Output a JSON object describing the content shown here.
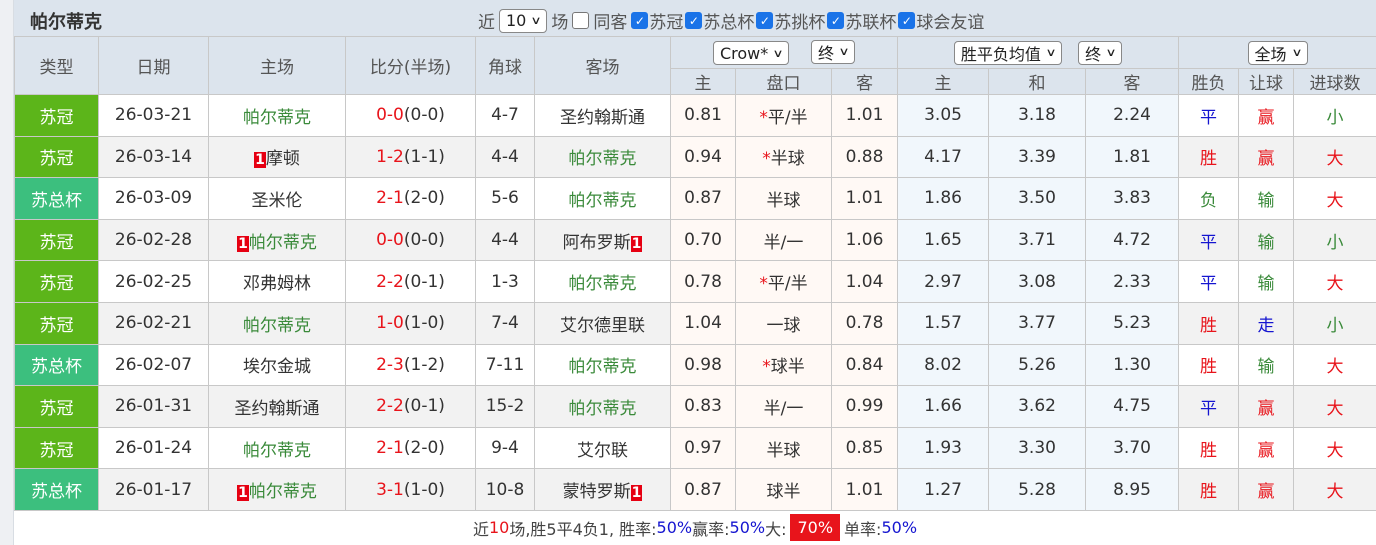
{
  "title": "帕尔蒂克",
  "filters": {
    "near": "近",
    "count": "10",
    "unit": "场",
    "same_home": {
      "label": "同客",
      "checked": false
    },
    "leagues": [
      {
        "label": "苏冠",
        "checked": true
      },
      {
        "label": "苏总杯",
        "checked": true
      },
      {
        "label": "苏挑杯",
        "checked": true
      },
      {
        "label": "苏联杯",
        "checked": true
      },
      {
        "label": "球会友谊",
        "checked": true
      }
    ]
  },
  "headers": {
    "type": "类型",
    "date": "日期",
    "home": "主场",
    "score": "比分(半场)",
    "corner": "角球",
    "away": "客场",
    "hcp_company": "Crow*",
    "hcp_time": "终",
    "eu_type": "胜平负均值",
    "eu_time": "终",
    "scope": "全场",
    "sub": [
      "主",
      "盘口",
      "客",
      "主",
      "和",
      "客",
      "胜负",
      "让球",
      "进球数"
    ]
  },
  "colors": {
    "league_苏冠": "#5cb51a",
    "league_苏总杯": "#3cbf7e",
    "win": "#e8141b",
    "loss": "#3a8a3a",
    "draw": "#1515d0"
  },
  "rows": [
    {
      "league": "苏冠",
      "date": "26-03-21",
      "home": "帕尔蒂克",
      "home_badge": "",
      "home_team": true,
      "ft": "0-0",
      "ht": "(0-0)",
      "corner": "4-7",
      "away": "圣约翰斯通",
      "away_badge": "",
      "away_team": false,
      "h_home": "0.81",
      "hcp": "平/半",
      "star": true,
      "h_away": "1.01",
      "e_home": "3.05",
      "e_draw": "3.18",
      "e_away": "2.24",
      "res": "平",
      "hres": "赢",
      "ou": "小"
    },
    {
      "league": "苏冠",
      "date": "26-03-14",
      "home": "摩顿",
      "home_badge": "1",
      "home_team": false,
      "ft": "1-2",
      "ht": "(1-1)",
      "corner": "4-4",
      "away": "帕尔蒂克",
      "away_badge": "",
      "away_team": true,
      "h_home": "0.94",
      "hcp": "半球",
      "star": true,
      "h_away": "0.88",
      "e_home": "4.17",
      "e_draw": "3.39",
      "e_away": "1.81",
      "res": "胜",
      "hres": "赢",
      "ou": "大"
    },
    {
      "league": "苏总杯",
      "date": "26-03-09",
      "home": "圣米伦",
      "home_badge": "",
      "home_team": false,
      "ft": "2-1",
      "ht": "(2-0)",
      "corner": "5-6",
      "away": "帕尔蒂克",
      "away_badge": "",
      "away_team": true,
      "h_home": "0.87",
      "hcp": "半球",
      "star": false,
      "h_away": "1.01",
      "e_home": "1.86",
      "e_draw": "3.50",
      "e_away": "3.83",
      "res": "负",
      "hres": "输",
      "ou": "大"
    },
    {
      "league": "苏冠",
      "date": "26-02-28",
      "home": "帕尔蒂克",
      "home_badge": "1",
      "home_team": true,
      "ft": "0-0",
      "ht": "(0-0)",
      "corner": "4-4",
      "away": "阿布罗斯",
      "away_badge": "1",
      "away_team": false,
      "h_home": "0.70",
      "hcp": "半/一",
      "star": false,
      "h_away": "1.06",
      "e_home": "1.65",
      "e_draw": "3.71",
      "e_away": "4.72",
      "res": "平",
      "hres": "输",
      "ou": "小"
    },
    {
      "league": "苏冠",
      "date": "26-02-25",
      "home": "邓弗姆林",
      "home_badge": "",
      "home_team": false,
      "ft": "2-2",
      "ht": "(0-1)",
      "corner": "1-3",
      "away": "帕尔蒂克",
      "away_badge": "",
      "away_team": true,
      "h_home": "0.78",
      "hcp": "平/半",
      "star": true,
      "h_away": "1.04",
      "e_home": "2.97",
      "e_draw": "3.08",
      "e_away": "2.33",
      "res": "平",
      "hres": "输",
      "ou": "大"
    },
    {
      "league": "苏冠",
      "date": "26-02-21",
      "home": "帕尔蒂克",
      "home_badge": "",
      "home_team": true,
      "ft": "1-0",
      "ht": "(1-0)",
      "corner": "7-4",
      "away": "艾尔德里联",
      "away_badge": "",
      "away_team": false,
      "h_home": "1.04",
      "hcp": "一球",
      "star": false,
      "h_away": "0.78",
      "e_home": "1.57",
      "e_draw": "3.77",
      "e_away": "5.23",
      "res": "胜",
      "hres": "走",
      "ou": "小"
    },
    {
      "league": "苏总杯",
      "date": "26-02-07",
      "home": "埃尔金城",
      "home_badge": "",
      "home_team": false,
      "ft": "2-3",
      "ht": "(1-2)",
      "corner": "7-11",
      "away": "帕尔蒂克",
      "away_badge": "",
      "away_team": true,
      "h_home": "0.98",
      "hcp": "球半",
      "star": true,
      "h_away": "0.84",
      "e_home": "8.02",
      "e_draw": "5.26",
      "e_away": "1.30",
      "res": "胜",
      "hres": "输",
      "ou": "大"
    },
    {
      "league": "苏冠",
      "date": "26-01-31",
      "home": "圣约翰斯通",
      "home_badge": "",
      "home_team": false,
      "ft": "2-2",
      "ht": "(0-1)",
      "corner": "15-2",
      "away": "帕尔蒂克",
      "away_badge": "",
      "away_team": true,
      "h_home": "0.83",
      "hcp": "半/一",
      "star": false,
      "h_away": "0.99",
      "e_home": "1.66",
      "e_draw": "3.62",
      "e_away": "4.75",
      "res": "平",
      "hres": "赢",
      "ou": "大"
    },
    {
      "league": "苏冠",
      "date": "26-01-24",
      "home": "帕尔蒂克",
      "home_badge": "",
      "home_team": true,
      "ft": "2-1",
      "ht": "(2-0)",
      "corner": "9-4",
      "away": "艾尔联",
      "away_badge": "",
      "away_team": false,
      "h_home": "0.97",
      "hcp": "半球",
      "star": false,
      "h_away": "0.85",
      "e_home": "1.93",
      "e_draw": "3.30",
      "e_away": "3.70",
      "res": "胜",
      "hres": "赢",
      "ou": "大"
    },
    {
      "league": "苏总杯",
      "date": "26-01-17",
      "home": "帕尔蒂克",
      "home_badge": "1",
      "home_team": true,
      "ft": "3-1",
      "ht": "(1-0)",
      "corner": "10-8",
      "away": "蒙特罗斯",
      "away_badge": "1",
      "away_team": false,
      "h_home": "0.87",
      "hcp": "球半",
      "star": false,
      "h_away": "1.01",
      "e_home": "1.27",
      "e_draw": "5.28",
      "e_away": "8.95",
      "res": "胜",
      "hres": "赢",
      "ou": "大"
    }
  ],
  "footer": {
    "p1": "近",
    "n": "10",
    "p2": "场,胜5平4负1, 胜率:",
    "win_rate": "50%",
    "p3": " 赢率:",
    "cover_rate": "50%",
    "p4": " 大:",
    "over_rate": "70%",
    "p5": " 单率:",
    "odd_rate": "50%"
  }
}
